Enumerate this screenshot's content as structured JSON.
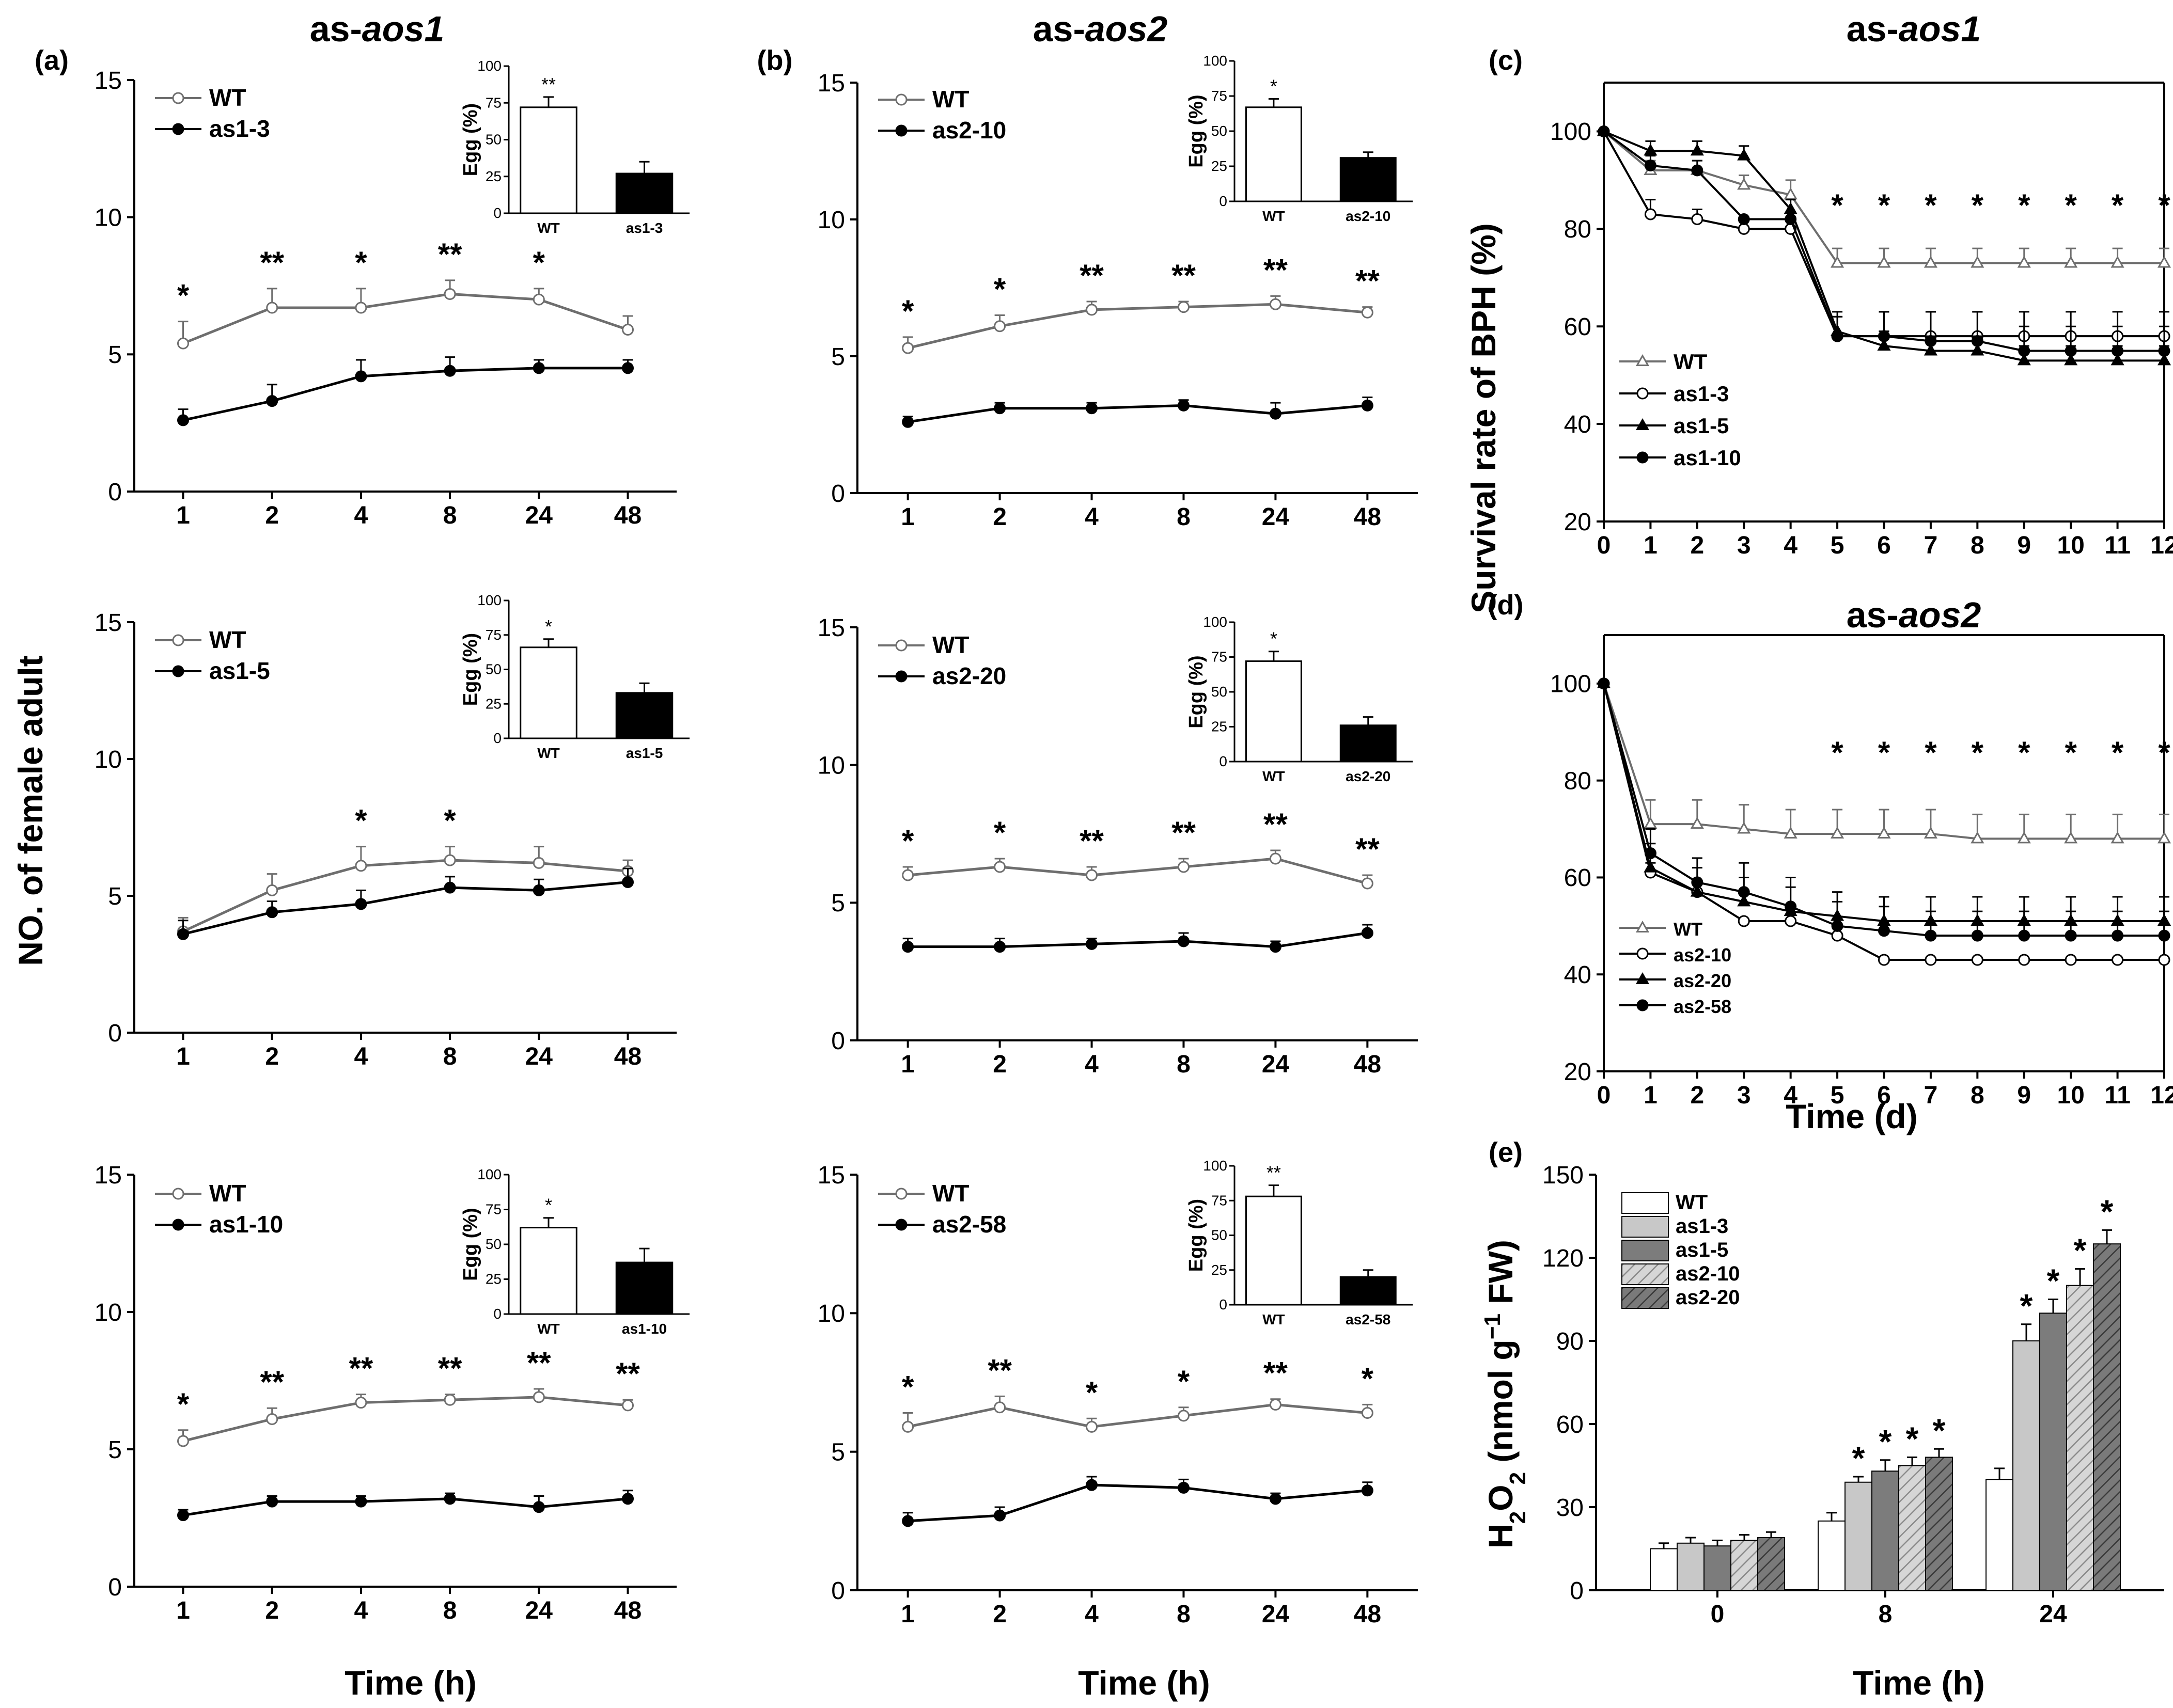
{
  "figure": {
    "ylabel_left": "NO. of female adult",
    "ylabel_right": "Survival rate of BPH (%)",
    "xlabel_hours": "Time (h)",
    "xlabel_days": "Time (d)",
    "col_title_a": "as-",
    "col_title_a_italic": "aos1",
    "col_title_b": "as-",
    "col_title_b_italic": "aos2",
    "col_title_c": "as-",
    "col_title_c_italic": "aos1",
    "col_title_d": "as-",
    "col_title_d_italic": "aos2"
  },
  "colors": {
    "wt": "#6e6e6e",
    "line": "#000000",
    "bar_wt": "#ffffff",
    "bar_mut": "#000000"
  },
  "chart_data": [
    {
      "id": "a1",
      "panel_label": "(a)",
      "type": "line",
      "x": [
        "1",
        "2",
        "4",
        "8",
        "24",
        "48"
      ],
      "ylim": [
        0,
        15
      ],
      "yticks": [
        "0",
        "5",
        "10",
        "15"
      ],
      "series": [
        {
          "name": "WT",
          "values": [
            5.4,
            6.7,
            6.7,
            7.2,
            7.0,
            5.9
          ],
          "err": [
            0.8,
            0.7,
            0.7,
            0.5,
            0.4,
            0.5
          ]
        },
        {
          "name": "as1-3",
          "values": [
            2.6,
            3.3,
            4.2,
            4.4,
            4.5,
            4.5
          ],
          "err": [
            0.4,
            0.6,
            0.6,
            0.5,
            0.3,
            0.3
          ]
        }
      ],
      "stars": [
        "*",
        "**",
        "*",
        "**",
        "*",
        ""
      ],
      "inset": {
        "ylabel": "Egg (%)",
        "yticks": [
          "0",
          "25",
          "50",
          "75",
          "100"
        ],
        "cats": [
          "WT",
          "as1-3"
        ],
        "values": [
          72,
          27
        ],
        "err": [
          7,
          8
        ],
        "star": "**"
      }
    },
    {
      "id": "a2",
      "panel_label": "",
      "type": "line",
      "x": [
        "1",
        "2",
        "4",
        "8",
        "24",
        "48"
      ],
      "ylim": [
        0,
        15
      ],
      "yticks": [
        "0",
        "5",
        "10",
        "15"
      ],
      "series": [
        {
          "name": "WT",
          "values": [
            3.7,
            5.2,
            6.1,
            6.3,
            6.2,
            5.9
          ],
          "err": [
            0.5,
            0.6,
            0.7,
            0.5,
            0.6,
            0.4
          ]
        },
        {
          "name": "as1-5",
          "values": [
            3.6,
            4.4,
            4.7,
            5.3,
            5.2,
            5.5
          ],
          "err": [
            0.5,
            0.4,
            0.5,
            0.4,
            0.4,
            0.5
          ]
        }
      ],
      "stars": [
        "",
        "",
        "*",
        "*",
        "",
        ""
      ],
      "inset": {
        "ylabel": "Egg (%)",
        "yticks": [
          "0",
          "25",
          "50",
          "75",
          "100"
        ],
        "cats": [
          "WT",
          "as1-5"
        ],
        "values": [
          66,
          33
        ],
        "err": [
          6,
          7
        ],
        "star": "*"
      }
    },
    {
      "id": "a3",
      "panel_label": "",
      "type": "line",
      "x": [
        "1",
        "2",
        "4",
        "8",
        "24",
        "48"
      ],
      "ylim": [
        0,
        15
      ],
      "yticks": [
        "0",
        "5",
        "10",
        "15"
      ],
      "series": [
        {
          "name": "WT",
          "values": [
            5.3,
            6.1,
            6.7,
            6.8,
            6.9,
            6.6
          ],
          "err": [
            0.4,
            0.4,
            0.3,
            0.2,
            0.3,
            0.2
          ]
        },
        {
          "name": "as1-10",
          "values": [
            2.6,
            3.1,
            3.1,
            3.2,
            2.9,
            3.2
          ],
          "err": [
            0.2,
            0.2,
            0.2,
            0.2,
            0.4,
            0.3
          ]
        }
      ],
      "stars": [
        "*",
        "**",
        "**",
        "**",
        "**",
        "**"
      ],
      "inset": {
        "ylabel": "Egg (%)",
        "yticks": [
          "0",
          "25",
          "50",
          "75",
          "100"
        ],
        "cats": [
          "WT",
          "as1-10"
        ],
        "values": [
          62,
          37
        ],
        "err": [
          7,
          10
        ],
        "star": "*"
      }
    },
    {
      "id": "b1",
      "panel_label": "(b)",
      "type": "line",
      "x": [
        "1",
        "2",
        "4",
        "8",
        "24",
        "48"
      ],
      "ylim": [
        0,
        15
      ],
      "yticks": [
        "0",
        "5",
        "10",
        "15"
      ],
      "series": [
        {
          "name": "WT",
          "values": [
            5.3,
            6.1,
            6.7,
            6.8,
            6.9,
            6.6
          ],
          "err": [
            0.4,
            0.4,
            0.3,
            0.2,
            0.3,
            0.2
          ]
        },
        {
          "name": "as2-10",
          "values": [
            2.6,
            3.1,
            3.1,
            3.2,
            2.9,
            3.2
          ],
          "err": [
            0.2,
            0.2,
            0.2,
            0.2,
            0.4,
            0.3
          ]
        }
      ],
      "stars": [
        "*",
        "*",
        "**",
        "**",
        "**",
        "**"
      ],
      "inset": {
        "ylabel": "Egg (%)",
        "yticks": [
          "0",
          "25",
          "50",
          "75",
          "100"
        ],
        "cats": [
          "WT",
          "as2-10"
        ],
        "values": [
          67,
          31
        ],
        "err": [
          6,
          4
        ],
        "star": "*"
      }
    },
    {
      "id": "b2",
      "panel_label": "",
      "type": "line",
      "x": [
        "1",
        "2",
        "4",
        "8",
        "24",
        "48"
      ],
      "ylim": [
        0,
        15
      ],
      "yticks": [
        "0",
        "5",
        "10",
        "15"
      ],
      "series": [
        {
          "name": "WT",
          "values": [
            6.0,
            6.3,
            6.0,
            6.3,
            6.6,
            5.7
          ],
          "err": [
            0.3,
            0.3,
            0.3,
            0.3,
            0.3,
            0.3
          ]
        },
        {
          "name": "as2-20",
          "values": [
            3.4,
            3.4,
            3.5,
            3.6,
            3.4,
            3.9
          ],
          "err": [
            0.3,
            0.3,
            0.2,
            0.3,
            0.2,
            0.3
          ]
        }
      ],
      "stars": [
        "*",
        "*",
        "**",
        "**",
        "**",
        "**"
      ],
      "inset": {
        "ylabel": "Egg (%)",
        "yticks": [
          "0",
          "25",
          "50",
          "75",
          "100"
        ],
        "cats": [
          "WT",
          "as2-20"
        ],
        "values": [
          72,
          26
        ],
        "err": [
          7,
          6
        ],
        "star": "*"
      }
    },
    {
      "id": "b3",
      "panel_label": "",
      "type": "line",
      "x": [
        "1",
        "2",
        "4",
        "8",
        "24",
        "48"
      ],
      "ylim": [
        0,
        15
      ],
      "yticks": [
        "0",
        "5",
        "10",
        "15"
      ],
      "series": [
        {
          "name": "WT",
          "values": [
            5.9,
            6.6,
            5.9,
            6.3,
            6.7,
            6.4
          ],
          "err": [
            0.5,
            0.4,
            0.3,
            0.3,
            0.2,
            0.3
          ]
        },
        {
          "name": "as2-58",
          "values": [
            2.5,
            2.7,
            3.8,
            3.7,
            3.3,
            3.6
          ],
          "err": [
            0.3,
            0.3,
            0.3,
            0.3,
            0.2,
            0.3
          ]
        }
      ],
      "stars": [
        "*",
        "**",
        "*",
        "*",
        "**",
        "*"
      ],
      "inset": {
        "ylabel": "Egg (%)",
        "yticks": [
          "0",
          "25",
          "50",
          "75",
          "100"
        ],
        "cats": [
          "WT",
          "as2-58"
        ],
        "values": [
          78,
          20
        ],
        "err": [
          8,
          5
        ],
        "star": "**"
      }
    },
    {
      "id": "c",
      "panel_label": "(c)",
      "type": "line",
      "x": [
        "0",
        "1",
        "2",
        "3",
        "4",
        "5",
        "6",
        "7",
        "8",
        "9",
        "10",
        "11",
        "12"
      ],
      "ylim": [
        20,
        110
      ],
      "yticks": [
        "20",
        "40",
        "60",
        "80",
        "100"
      ],
      "series": [
        {
          "name": "WT",
          "marker": "tri-open",
          "values": [
            100,
            92,
            92,
            89,
            87,
            73,
            73,
            73,
            73,
            73,
            73,
            73,
            73
          ],
          "err": [
            0,
            2,
            2,
            2,
            3,
            3,
            3,
            3,
            3,
            3,
            3,
            3,
            3
          ]
        },
        {
          "name": "as1-3",
          "marker": "circle-open",
          "values": [
            100,
            83,
            82,
            80,
            80,
            58,
            58,
            58,
            58,
            58,
            58,
            58,
            58
          ],
          "err": [
            0,
            3,
            2,
            0,
            0,
            4,
            5,
            5,
            5,
            5,
            5,
            5,
            5
          ]
        },
        {
          "name": "as1-5",
          "marker": "tri-filled",
          "values": [
            100,
            96,
            96,
            95,
            84,
            59,
            56,
            55,
            55,
            53,
            53,
            53,
            53
          ],
          "err": [
            0,
            2,
            2,
            2,
            2,
            3,
            3,
            3,
            3,
            3,
            3,
            3,
            3
          ]
        },
        {
          "name": "as1-10",
          "marker": "circle-filled",
          "values": [
            100,
            93,
            92,
            82,
            82,
            58,
            58,
            57,
            57,
            55,
            55,
            55,
            55
          ],
          "err": [
            0,
            2,
            2,
            0,
            0,
            5,
            5,
            6,
            6,
            5,
            5,
            5,
            5
          ]
        }
      ],
      "stars": [
        "",
        "",
        "",
        "",
        "",
        "*",
        "*",
        "*",
        "*",
        "*",
        "*",
        "*",
        "*"
      ]
    },
    {
      "id": "d",
      "panel_label": "(d)",
      "type": "line",
      "x": [
        "0",
        "1",
        "2",
        "3",
        "4",
        "5",
        "6",
        "7",
        "8",
        "9",
        "10",
        "11",
        "12"
      ],
      "ylim": [
        20,
        110
      ],
      "yticks": [
        "20",
        "40",
        "60",
        "80",
        "100"
      ],
      "series": [
        {
          "name": "WT",
          "marker": "tri-open",
          "values": [
            100,
            71,
            71,
            70,
            69,
            69,
            69,
            69,
            68,
            68,
            68,
            68,
            68
          ],
          "err": [
            0,
            5,
            5,
            5,
            5,
            5,
            5,
            5,
            5,
            5,
            5,
            5,
            5
          ]
        },
        {
          "name": "as2-10",
          "marker": "circle-open",
          "values": [
            100,
            61,
            57,
            51,
            51,
            48,
            43,
            43,
            43,
            43,
            43,
            43,
            43
          ],
          "err": [
            0,
            2,
            2,
            0,
            0,
            0,
            0,
            0,
            0,
            0,
            0,
            0,
            0
          ]
        },
        {
          "name": "as2-20",
          "marker": "tri-filled",
          "values": [
            100,
            62,
            57,
            55,
            53,
            52,
            51,
            51,
            51,
            51,
            51,
            51,
            51
          ],
          "err": [
            0,
            5,
            5,
            5,
            5,
            5,
            5,
            5,
            5,
            5,
            5,
            5,
            5
          ]
        },
        {
          "name": "as2-58",
          "marker": "circle-filled",
          "values": [
            100,
            65,
            59,
            57,
            54,
            50,
            49,
            48,
            48,
            48,
            48,
            48,
            48
          ],
          "err": [
            0,
            5,
            5,
            6,
            6,
            5,
            5,
            5,
            5,
            5,
            5,
            5,
            5
          ]
        }
      ],
      "stars": [
        "",
        "",
        "",
        "",
        "",
        "*",
        "*",
        "*",
        "*",
        "*",
        "*",
        "*",
        "*"
      ]
    },
    {
      "id": "e",
      "panel_label": "(e)",
      "type": "bar",
      "categories": [
        "0",
        "8",
        "24"
      ],
      "ylim": [
        0,
        150
      ],
      "yticks": [
        "0",
        "30",
        "60",
        "90",
        "120",
        "150"
      ],
      "ylabel_main": "H",
      "ylabel_sub": "2",
      "ylabel_o": "O",
      "ylabel_sub2": "2",
      "ylabel_unit_a": " (nmol g",
      "ylabel_sup": "−1",
      "ylabel_unit_b": " FW)",
      "series": [
        {
          "name": "WT",
          "fill": "#ffffff",
          "values": [
            15,
            25,
            40
          ],
          "err": [
            2,
            3,
            4
          ]
        },
        {
          "name": "as1-3",
          "fill": "#c8c8c8",
          "values": [
            17,
            39,
            90
          ],
          "err": [
            2,
            2,
            6
          ]
        },
        {
          "name": "as1-5",
          "fill": "#7c7c7c",
          "values": [
            16,
            43,
            100
          ],
          "err": [
            2,
            4,
            5
          ]
        },
        {
          "name": "as2-10",
          "fill": "#d6d6d6",
          "hatch": true,
          "values": [
            18,
            45,
            110
          ],
          "err": [
            2,
            3,
            6
          ]
        },
        {
          "name": "as2-20",
          "fill": "#7a7a7a",
          "hatch": true,
          "values": [
            19,
            48,
            125
          ],
          "err": [
            2,
            3,
            5
          ]
        }
      ],
      "stars": [
        [
          "",
          "",
          "",
          "",
          ""
        ],
        [
          "",
          "*",
          "*",
          "*",
          "*"
        ],
        [
          "",
          "*",
          "*",
          "*",
          "*"
        ]
      ]
    }
  ]
}
